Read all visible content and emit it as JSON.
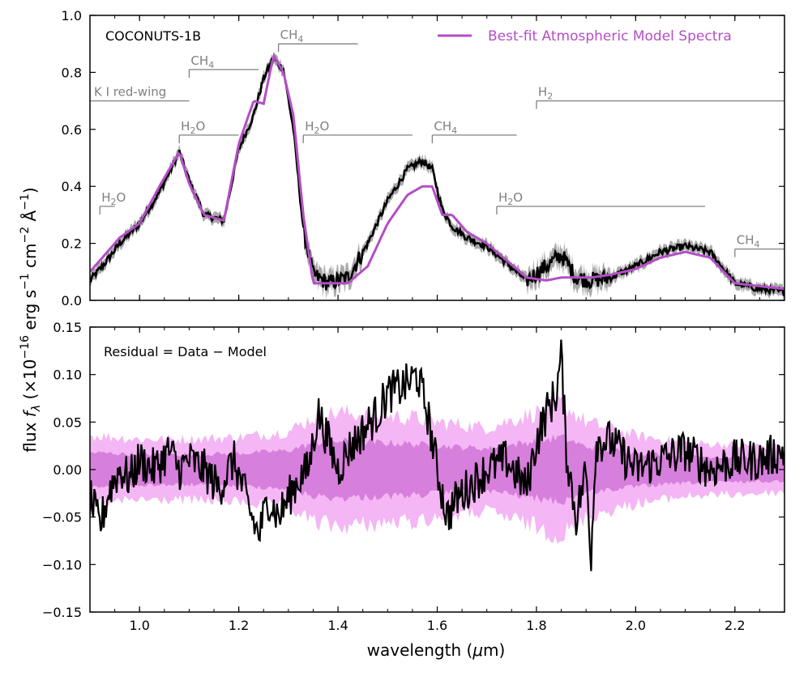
{
  "chart_data": [
    {
      "type": "line",
      "panel": "top",
      "object_label": "COCONUTS-1B",
      "xlabel": "wavelength (μm)",
      "ylabel": "flux fλ (×10⁻¹⁶ erg s⁻¹ cm⁻² Å⁻¹)",
      "xlim": [
        0.9,
        2.3
      ],
      "ylim": [
        0.0,
        1.0
      ],
      "xticks": [
        "1.0",
        "1.2",
        "1.4",
        "1.6",
        "1.8",
        "2.0",
        "2.2"
      ],
      "xtick_values": [
        1.0,
        1.2,
        1.4,
        1.6,
        1.8,
        2.0,
        2.2
      ],
      "yticks": [
        "0.0",
        "0.2",
        "0.4",
        "0.6",
        "0.8",
        "1.0"
      ],
      "ytick_values": [
        0.0,
        0.2,
        0.4,
        0.6,
        0.8,
        1.0
      ],
      "legend": {
        "entries": [
          "Best-fit Atmospheric Model Spectra"
        ],
        "location": "top-right"
      },
      "colors": {
        "data": "#000000",
        "error_band": "#a0a0a0",
        "model": "#b44ec6",
        "annotation": "#808080"
      },
      "series": [
        {
          "name": "Data",
          "x": [
            0.9,
            0.93,
            0.96,
            1.0,
            1.04,
            1.08,
            1.1,
            1.13,
            1.15,
            1.17,
            1.2,
            1.23,
            1.25,
            1.27,
            1.29,
            1.31,
            1.33,
            1.35,
            1.38,
            1.42,
            1.46,
            1.5,
            1.54,
            1.57,
            1.59,
            1.61,
            1.63,
            1.66,
            1.7,
            1.74,
            1.78,
            1.82,
            1.85,
            1.88,
            1.91,
            1.95,
            2.0,
            2.05,
            2.1,
            2.15,
            2.2,
            2.25,
            2.3
          ],
          "y": [
            0.07,
            0.13,
            0.2,
            0.27,
            0.38,
            0.52,
            0.42,
            0.3,
            0.29,
            0.28,
            0.53,
            0.65,
            0.78,
            0.85,
            0.81,
            0.6,
            0.25,
            0.09,
            0.06,
            0.08,
            0.2,
            0.35,
            0.46,
            0.49,
            0.46,
            0.32,
            0.26,
            0.22,
            0.19,
            0.13,
            0.07,
            0.12,
            0.16,
            0.08,
            0.07,
            0.08,
            0.12,
            0.17,
            0.19,
            0.17,
            0.06,
            0.04,
            0.03
          ]
        },
        {
          "name": "Best-fit Atmospheric Model Spectra",
          "x": [
            0.9,
            0.93,
            0.96,
            1.0,
            1.04,
            1.08,
            1.1,
            1.13,
            1.15,
            1.17,
            1.2,
            1.23,
            1.25,
            1.27,
            1.29,
            1.31,
            1.33,
            1.35,
            1.38,
            1.42,
            1.46,
            1.5,
            1.54,
            1.57,
            1.59,
            1.61,
            1.63,
            1.66,
            1.7,
            1.74,
            1.78,
            1.82,
            1.85,
            1.88,
            1.91,
            1.95,
            2.0,
            2.05,
            2.1,
            2.15,
            2.2,
            2.25,
            2.3
          ],
          "y": [
            0.1,
            0.16,
            0.22,
            0.27,
            0.4,
            0.52,
            0.41,
            0.3,
            0.29,
            0.28,
            0.55,
            0.7,
            0.69,
            0.86,
            0.8,
            0.65,
            0.3,
            0.06,
            0.06,
            0.06,
            0.12,
            0.27,
            0.37,
            0.4,
            0.4,
            0.3,
            0.3,
            0.24,
            0.2,
            0.14,
            0.08,
            0.07,
            0.08,
            0.08,
            0.08,
            0.09,
            0.11,
            0.15,
            0.17,
            0.15,
            0.06,
            0.05,
            0.04
          ]
        }
      ],
      "annotations": [
        {
          "species": "H",
          "sub": "2",
          "suffix": "O",
          "x_start": 0.92,
          "x_end": 0.95,
          "y": 0.33
        },
        {
          "species": "K I red-wing",
          "sub": "",
          "suffix": "",
          "x_start": 0.9,
          "x_end": 1.1,
          "y": 0.7
        },
        {
          "species": "H",
          "sub": "2",
          "suffix": "O",
          "x_start": 1.08,
          "x_end": 1.2,
          "y": 0.58
        },
        {
          "species": "CH",
          "sub": "4",
          "suffix": "",
          "x_start": 1.1,
          "x_end": 1.24,
          "y": 0.81
        },
        {
          "species": "CH",
          "sub": "4",
          "suffix": "",
          "x_start": 1.28,
          "x_end": 1.44,
          "y": 0.9
        },
        {
          "species": "H",
          "sub": "2",
          "suffix": "O",
          "x_start": 1.33,
          "x_end": 1.55,
          "y": 0.58
        },
        {
          "species": "CH",
          "sub": "4",
          "suffix": "",
          "x_start": 1.59,
          "x_end": 1.76,
          "y": 0.58
        },
        {
          "species": "H",
          "sub": "2",
          "suffix": "",
          "x_start": 1.8,
          "x_end": 2.3,
          "y": 0.7
        },
        {
          "species": "H",
          "sub": "2",
          "suffix": "O",
          "x_start": 1.72,
          "x_end": 2.14,
          "y": 0.33
        },
        {
          "species": "CH",
          "sub": "4",
          "suffix": "",
          "x_start": 2.2,
          "x_end": 2.3,
          "y": 0.18
        }
      ]
    },
    {
      "type": "line",
      "panel": "bottom",
      "panel_label": "Residual = Data − Model",
      "xlabel": "wavelength (μm)",
      "xlim": [
        0.9,
        2.3
      ],
      "ylim": [
        -0.15,
        0.15
      ],
      "xticks": [
        "1.0",
        "1.2",
        "1.4",
        "1.6",
        "1.8",
        "2.0",
        "2.2"
      ],
      "xtick_values": [
        1.0,
        1.2,
        1.4,
        1.6,
        1.8,
        2.0,
        2.2
      ],
      "yticks": [
        "−0.15",
        "−0.10",
        "−0.05",
        "0.00",
        "0.05",
        "0.10",
        "0.15"
      ],
      "ytick_values": [
        -0.15,
        -0.1,
        -0.05,
        0.0,
        0.05,
        0.1,
        0.15
      ],
      "colors": {
        "residual": "#000000",
        "band_1sigma": "#d77fdc",
        "band_2sigma": "#f4b6f4"
      },
      "bands": {
        "x": [
          0.9,
          1.0,
          1.1,
          1.2,
          1.3,
          1.35,
          1.4,
          1.5,
          1.55,
          1.6,
          1.7,
          1.8,
          1.85,
          1.9,
          2.0,
          2.1,
          2.2,
          2.3
        ],
        "sigma1": [
          0.018,
          0.016,
          0.016,
          0.017,
          0.02,
          0.028,
          0.03,
          0.028,
          0.027,
          0.025,
          0.022,
          0.03,
          0.034,
          0.024,
          0.018,
          0.014,
          0.013,
          0.012
        ],
        "sigma2": [
          0.036,
          0.032,
          0.032,
          0.034,
          0.04,
          0.055,
          0.06,
          0.056,
          0.055,
          0.05,
          0.044,
          0.06,
          0.07,
          0.05,
          0.036,
          0.028,
          0.026,
          0.024
        ]
      },
      "series": [
        {
          "name": "Residual",
          "x": [
            0.9,
            0.92,
            0.94,
            0.96,
            0.98,
            1.0,
            1.03,
            1.06,
            1.08,
            1.1,
            1.13,
            1.16,
            1.19,
            1.22,
            1.24,
            1.26,
            1.28,
            1.3,
            1.32,
            1.34,
            1.36,
            1.38,
            1.4,
            1.42,
            1.45,
            1.48,
            1.5,
            1.52,
            1.54,
            1.56,
            1.57,
            1.58,
            1.6,
            1.62,
            1.64,
            1.66,
            1.7,
            1.74,
            1.78,
            1.8,
            1.82,
            1.84,
            1.85,
            1.86,
            1.88,
            1.9,
            1.91,
            1.92,
            1.95,
            2.0,
            2.05,
            2.1,
            2.15,
            2.2,
            2.25,
            2.3
          ],
          "y": [
            -0.03,
            -0.06,
            -0.02,
            0.0,
            -0.01,
            0.01,
            0.0,
            0.02,
            0.0,
            0.01,
            0.0,
            -0.02,
            0.01,
            -0.04,
            -0.07,
            -0.03,
            -0.05,
            -0.03,
            -0.01,
            0.0,
            0.06,
            0.03,
            0.0,
            0.02,
            0.04,
            0.06,
            0.08,
            0.085,
            0.09,
            0.1,
            0.08,
            0.06,
            0.0,
            -0.05,
            -0.03,
            -0.02,
            0.0,
            0.01,
            -0.02,
            0.03,
            0.06,
            0.08,
            0.12,
            0.02,
            -0.05,
            0.0,
            -0.09,
            0.03,
            0.03,
            0.0,
            0.01,
            0.02,
            0.0,
            0.01,
            0.01,
            0.02
          ]
        }
      ]
    }
  ]
}
